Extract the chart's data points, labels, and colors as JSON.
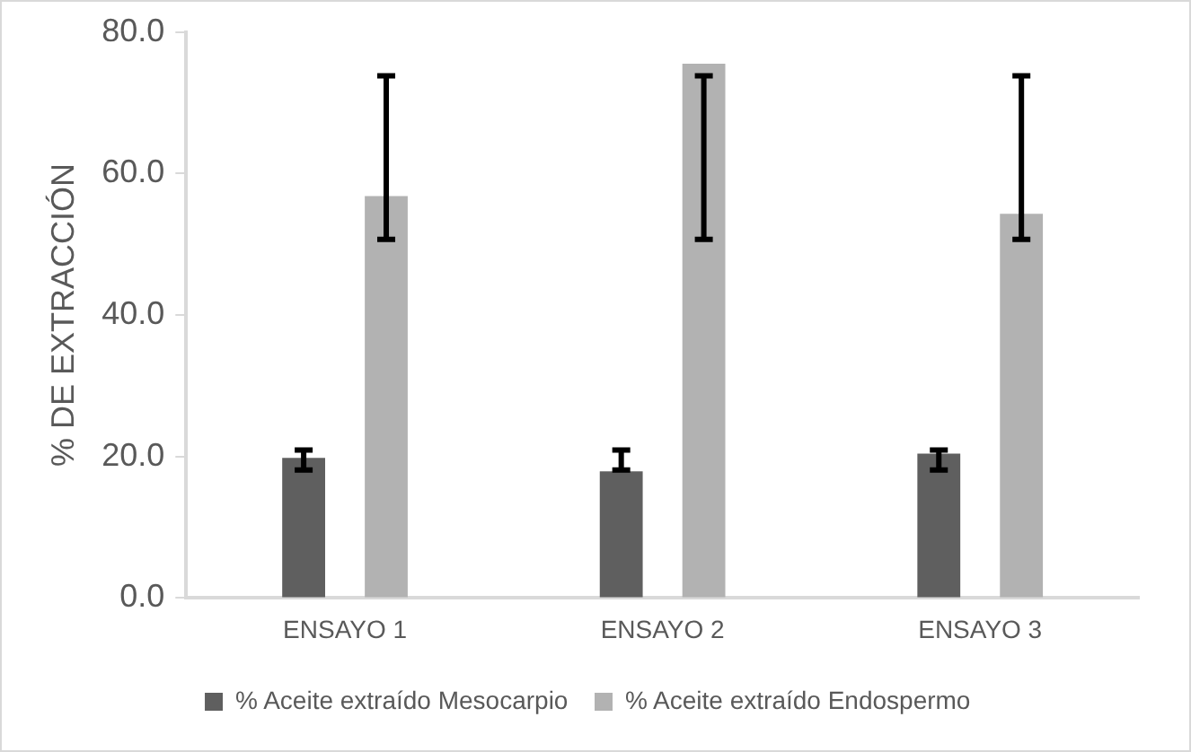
{
  "chart_data": {
    "type": "bar",
    "ylabel": "% DE EXTRACCIÓN",
    "categories": [
      "ENSAYO 1",
      "ENSAYO 2",
      "ENSAYO 3"
    ],
    "series": [
      {
        "name": "% Aceite extraído Mesocarpio",
        "color": "#5f5f5f",
        "values": [
          19.8,
          17.9,
          20.4
        ],
        "errors": [
          [
            18.1,
            20.9
          ],
          [
            18.1,
            20.9
          ],
          [
            18.1,
            20.9
          ]
        ]
      },
      {
        "name": "% Aceite extraído Endospermo",
        "color": "#b2b2b2",
        "values": [
          56.8,
          75.5,
          54.3
        ],
        "errors": [
          [
            50.7,
            73.8
          ],
          [
            50.7,
            73.8
          ],
          [
            50.7,
            73.8
          ]
        ]
      }
    ],
    "ylim": [
      0,
      80
    ],
    "yticks": [
      {
        "value": 0,
        "label": "0.0"
      },
      {
        "value": 20,
        "label": "20.0"
      },
      {
        "value": 40,
        "label": "40.0"
      },
      {
        "value": 60,
        "label": "60.0"
      },
      {
        "value": 80,
        "label": "80.0"
      }
    ],
    "grid": false,
    "legend": "bottom"
  }
}
